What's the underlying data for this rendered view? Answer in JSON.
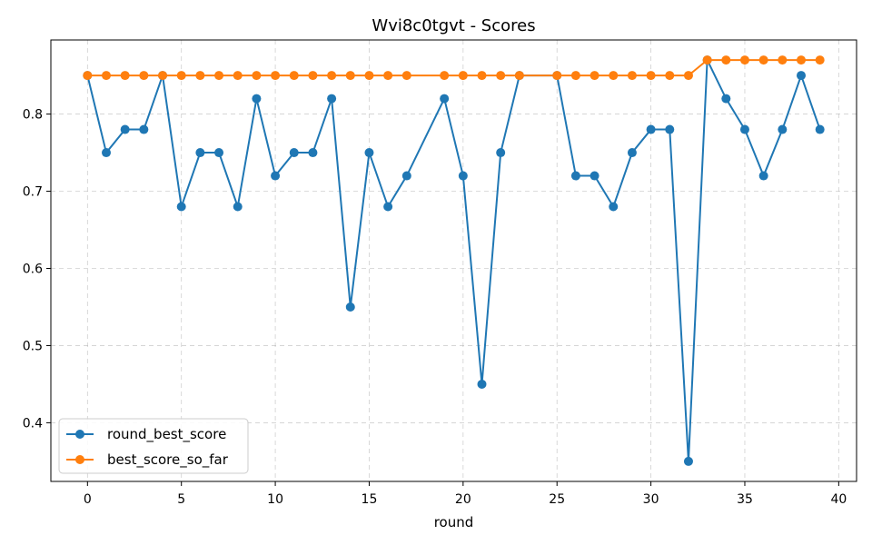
{
  "chart_data": {
    "type": "line",
    "title": "Wvi8c0tgvt - Scores",
    "xlabel": "round",
    "ylabel": "",
    "xlim": [
      -1.95,
      40.95
    ],
    "ylim": [
      0.324,
      0.896
    ],
    "xticks": [
      0,
      5,
      10,
      15,
      20,
      25,
      30,
      35,
      40
    ],
    "yticks": [
      0.4,
      0.5,
      0.6,
      0.7,
      0.8
    ],
    "xtick_labels": [
      "0",
      "5",
      "10",
      "15",
      "20",
      "25",
      "30",
      "35",
      "40"
    ],
    "ytick_labels": [
      "0.4",
      "0.5",
      "0.6",
      "0.7",
      "0.8"
    ],
    "grid": true,
    "legend_position": "lower-left",
    "series": [
      {
        "name": "round_best_score",
        "color": "#1f77b4",
        "x": [
          0,
          1,
          2,
          3,
          4,
          5,
          6,
          7,
          8,
          9,
          10,
          11,
          12,
          13,
          14,
          15,
          16,
          17,
          19,
          20,
          21,
          22,
          23,
          25,
          26,
          27,
          28,
          29,
          30,
          31,
          32,
          33,
          34,
          35,
          36,
          37,
          38,
          39
        ],
        "values": [
          0.85,
          0.75,
          0.78,
          0.78,
          0.85,
          0.68,
          0.75,
          0.75,
          0.68,
          0.82,
          0.72,
          0.75,
          0.75,
          0.82,
          0.55,
          0.75,
          0.68,
          0.72,
          0.82,
          0.72,
          0.45,
          0.75,
          0.85,
          0.85,
          0.72,
          0.72,
          0.68,
          0.75,
          0.78,
          0.78,
          0.35,
          0.87,
          0.82,
          0.78,
          0.72,
          0.78,
          0.85,
          0.78
        ]
      },
      {
        "name": "best_score_so_far",
        "color": "#ff7f0e",
        "x": [
          0,
          1,
          2,
          3,
          4,
          5,
          6,
          7,
          8,
          9,
          10,
          11,
          12,
          13,
          14,
          15,
          16,
          17,
          19,
          20,
          21,
          22,
          23,
          25,
          26,
          27,
          28,
          29,
          30,
          31,
          32,
          33,
          34,
          35,
          36,
          37,
          38,
          39
        ],
        "values": [
          0.85,
          0.85,
          0.85,
          0.85,
          0.85,
          0.85,
          0.85,
          0.85,
          0.85,
          0.85,
          0.85,
          0.85,
          0.85,
          0.85,
          0.85,
          0.85,
          0.85,
          0.85,
          0.85,
          0.85,
          0.85,
          0.85,
          0.85,
          0.85,
          0.85,
          0.85,
          0.85,
          0.85,
          0.85,
          0.85,
          0.85,
          0.87,
          0.87,
          0.87,
          0.87,
          0.87,
          0.87,
          0.87
        ]
      }
    ]
  }
}
